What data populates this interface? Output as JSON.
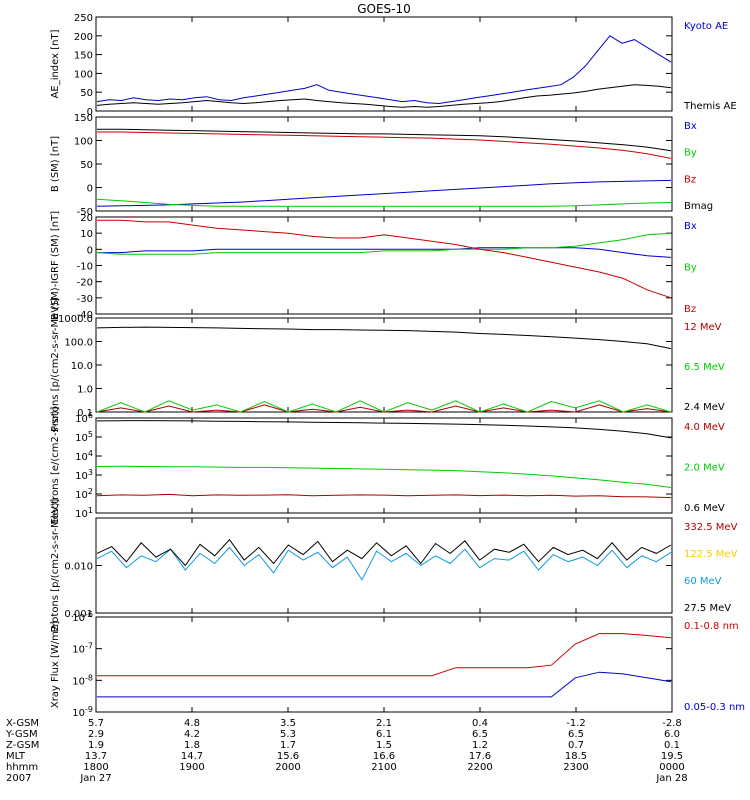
{
  "title": "GOES-10",
  "chart_data": [
    {
      "type": "line",
      "ylabel": "AE_index [nT]",
      "ylim": [
        0,
        250
      ],
      "yticks": [
        "0",
        "50",
        "100",
        "150",
        "200",
        "250"
      ],
      "series": [
        {
          "name": "Kyoto AE",
          "color": "#0000cc",
          "values": [
            25,
            30,
            28,
            35,
            30,
            28,
            32,
            30,
            35,
            38,
            30,
            28,
            35,
            40,
            45,
            50,
            55,
            60,
            70,
            55,
            50,
            45,
            40,
            35,
            30,
            25,
            28,
            22,
            20,
            25,
            30,
            35,
            40,
            45,
            50,
            55,
            60,
            65,
            70,
            90,
            120,
            160,
            200,
            180,
            190,
            170,
            150,
            130
          ]
        },
        {
          "name": "Themis AE",
          "color": "#000000",
          "values": [
            15,
            18,
            20,
            22,
            20,
            18,
            20,
            22,
            25,
            28,
            25,
            22,
            20,
            22,
            25,
            28,
            30,
            32,
            28,
            25,
            22,
            20,
            18,
            15,
            12,
            10,
            12,
            10,
            12,
            15,
            18,
            20,
            22,
            25,
            30,
            35,
            40,
            42,
            45,
            48,
            52,
            58,
            62,
            66,
            70,
            68,
            66,
            62
          ]
        }
      ]
    },
    {
      "type": "line",
      "ylabel": "B (SM) [nT]",
      "ylim": [
        -50,
        150
      ],
      "yticks": [
        "-50",
        "0",
        "50",
        "100",
        "150"
      ],
      "series": [
        {
          "name": "Bx",
          "color": "#0000cc",
          "values": [
            -40,
            -39,
            -38,
            -37,
            -35,
            -33,
            -31,
            -28,
            -25,
            -22,
            -19,
            -16,
            -13,
            -10,
            -7,
            -4,
            -1,
            2,
            5,
            8,
            10,
            12,
            13,
            14,
            15
          ]
        },
        {
          "name": "By",
          "color": "#00cc00",
          "values": [
            -25,
            -28,
            -32,
            -36,
            -38,
            -40,
            -40,
            -40,
            -40,
            -40,
            -40,
            -40,
            -40,
            -40,
            -40,
            -40,
            -40,
            -40,
            -40,
            -40,
            -39,
            -37,
            -35,
            -33,
            -32
          ]
        },
        {
          "name": "Bz",
          "color": "#cc0000",
          "values": [
            118,
            118,
            117,
            116,
            115,
            114,
            113,
            112,
            111,
            110,
            109,
            108,
            107,
            106,
            105,
            103,
            101,
            98,
            95,
            92,
            88,
            84,
            79,
            72,
            62
          ]
        },
        {
          "name": "Bmag",
          "color": "#000000",
          "values": [
            124,
            124,
            123,
            122,
            121,
            120,
            119,
            118,
            117,
            116,
            115,
            114,
            114,
            113,
            112,
            111,
            110,
            108,
            105,
            102,
            99,
            95,
            91,
            86,
            78
          ]
        }
      ]
    },
    {
      "type": "line",
      "ylabel": "B (SM)-IGRF (SM) [nT]",
      "ylim": [
        -40,
        20
      ],
      "yticks": [
        "-40",
        "-30",
        "-20",
        "-10",
        "0",
        "10",
        "20"
      ],
      "series": [
        {
          "name": "Bx",
          "color": "#0000cc",
          "values": [
            -2,
            -2,
            -1,
            -1,
            -1,
            0,
            0,
            0,
            0,
            0,
            0,
            0,
            0,
            0,
            0,
            0,
            1,
            1,
            1,
            1,
            1,
            0,
            -2,
            -4,
            -5
          ]
        },
        {
          "name": "By",
          "color": "#00cc00",
          "values": [
            -2,
            -3,
            -3,
            -3,
            -3,
            -2,
            -2,
            -2,
            -2,
            -2,
            -2,
            -2,
            -1,
            -1,
            -1,
            0,
            0,
            0,
            1,
            1,
            2,
            4,
            6,
            9,
            10
          ]
        },
        {
          "name": "Bz",
          "color": "#cc0000",
          "values": [
            18,
            18,
            17,
            17,
            15,
            13,
            12,
            11,
            10,
            8,
            7,
            7,
            9,
            7,
            5,
            3,
            0,
            -2,
            -5,
            -8,
            -11,
            -14,
            -18,
            -25,
            -30
          ]
        }
      ]
    },
    {
      "type": "line",
      "ylabel": "Protons [p/(cm2-s-sr-MeV)]",
      "yscale": "log",
      "ylim": [
        0.1,
        1000
      ],
      "yticks": [
        "0.1",
        "1.0",
        "10.0",
        "100.0",
        "1000.0"
      ],
      "series": [
        {
          "name": "12 MeV",
          "color": "#aa0000",
          "values": [
            0.1,
            0.15,
            0.1,
            0.18,
            0.1,
            0.12,
            0.1,
            0.2,
            0.1,
            0.13,
            0.1,
            0.16,
            0.1,
            0.12,
            0.1,
            0.18,
            0.1,
            0.15,
            0.1,
            0.12,
            0.1,
            0.2,
            0.1,
            0.14,
            0.1
          ]
        },
        {
          "name": "6.5 MeV",
          "color": "#00cc00",
          "values": [
            0.1,
            0.25,
            0.1,
            0.3,
            0.12,
            0.2,
            0.1,
            0.28,
            0.1,
            0.22,
            0.1,
            0.3,
            0.1,
            0.25,
            0.12,
            0.3,
            0.1,
            0.22,
            0.1,
            0.28,
            0.15,
            0.3,
            0.1,
            0.2,
            0.1
          ]
        },
        {
          "name": "2.4 MeV",
          "color": "#000000",
          "values": [
            380,
            400,
            410,
            400,
            390,
            380,
            360,
            350,
            340,
            320,
            320,
            310,
            300,
            290,
            270,
            250,
            220,
            200,
            180,
            160,
            140,
            120,
            100,
            80,
            50
          ]
        }
      ]
    },
    {
      "type": "line",
      "ylabel": "Electrons [e/(cm2-s-sr)]",
      "yscale": "log",
      "ylim": [
        10,
        1000000
      ],
      "yticks": [
        "10^1",
        "10^2",
        "10^3",
        "10^4",
        "10^5",
        "10^6"
      ],
      "series": [
        {
          "name": "4.0 MeV",
          "color": "#aa0000",
          "values": [
            80,
            90,
            85,
            95,
            80,
            90,
            85,
            88,
            92,
            80,
            85,
            90,
            88,
            80,
            85,
            90,
            82,
            88,
            80,
            85,
            78,
            80,
            72,
            70,
            65
          ]
        },
        {
          "name": "2.0 MeV",
          "color": "#00cc00",
          "values": [
            2800,
            2900,
            2800,
            2700,
            2700,
            2600,
            2500,
            2500,
            2400,
            2300,
            2200,
            2100,
            2000,
            1900,
            1800,
            1700,
            1500,
            1300,
            1100,
            900,
            700,
            550,
            420,
            320,
            220
          ]
        },
        {
          "name": "0.6 MeV",
          "color": "#000000",
          "values": [
            700000,
            720000,
            730000,
            710000,
            700000,
            680000,
            660000,
            640000,
            620000,
            600000,
            580000,
            560000,
            540000,
            520000,
            500000,
            480000,
            450000,
            420000,
            380000,
            340000,
            300000,
            250000,
            200000,
            150000,
            90000
          ]
        }
      ]
    },
    {
      "type": "line",
      "ylabel": "Protons [p/(cm2-s-sr-MeV)]",
      "yscale": "log",
      "ylim": [
        0.001,
        0.1
      ],
      "yticks": [
        "0.001",
        "0.010"
      ],
      "series": [
        {
          "name": "332.5 MeV",
          "color": "#aa0000",
          "values": []
        },
        {
          "name": "122.5 MeV",
          "color": "#ffcc00",
          "values": []
        },
        {
          "name": "60 MeV",
          "color": "#1199dd",
          "values": [
            0.014,
            0.02,
            0.009,
            0.016,
            0.012,
            0.022,
            0.008,
            0.018,
            0.011,
            0.024,
            0.01,
            0.017,
            0.007,
            0.021,
            0.013,
            0.019,
            0.009,
            0.015,
            0.005,
            0.02,
            0.012,
            0.018,
            0.01,
            0.016,
            0.011,
            0.022,
            0.009,
            0.014,
            0.013,
            0.02,
            0.008,
            0.017,
            0.012,
            0.015,
            0.01,
            0.021,
            0.009,
            0.016,
            0.012,
            0.019
          ]
        },
        {
          "name": "27.5 MeV",
          "color": "#000000",
          "values": [
            0.018,
            0.025,
            0.012,
            0.03,
            0.015,
            0.022,
            0.01,
            0.028,
            0.016,
            0.035,
            0.013,
            0.024,
            0.011,
            0.027,
            0.017,
            0.032,
            0.012,
            0.021,
            0.014,
            0.03,
            0.016,
            0.026,
            0.011,
            0.029,
            0.018,
            0.033,
            0.013,
            0.022,
            0.019,
            0.028,
            0.012,
            0.024,
            0.017,
            0.021,
            0.014,
            0.03,
            0.013,
            0.024,
            0.018,
            0.027
          ]
        }
      ]
    },
    {
      "type": "line",
      "ylabel": "Xray Flux [W/m2]",
      "yscale": "log",
      "ylim": [
        1e-09,
        1e-06
      ],
      "yticks": [
        "10^-9",
        "10^-8",
        "10^-7",
        "10^-6"
      ],
      "series": [
        {
          "name": "0.1-0.8 nm",
          "color": "#cc0000",
          "values": [
            1.4e-08,
            1.4e-08,
            1.4e-08,
            1.4e-08,
            1.4e-08,
            1.4e-08,
            1.4e-08,
            1.4e-08,
            1.4e-08,
            1.4e-08,
            1.4e-08,
            1.4e-08,
            1.4e-08,
            1.4e-08,
            1.4e-08,
            2.5e-08,
            2.5e-08,
            2.5e-08,
            2.5e-08,
            3e-08,
            1.4e-07,
            3e-07,
            3e-07,
            2.6e-07,
            2.2e-07
          ]
        },
        {
          "name": "0.05-0.3 nm",
          "color": "#0000cc",
          "values": [
            3e-09,
            3e-09,
            3e-09,
            3e-09,
            3e-09,
            3e-09,
            3e-09,
            3e-09,
            3e-09,
            3e-09,
            3e-09,
            3e-09,
            3e-09,
            3e-09,
            3e-09,
            3e-09,
            3e-09,
            3e-09,
            3e-09,
            3e-09,
            1.2e-08,
            1.8e-08,
            1.6e-08,
            1.2e-08,
            9e-09
          ]
        }
      ]
    }
  ],
  "xaxis": {
    "rows": [
      {
        "label": "X-GSM",
        "values": [
          "5.7",
          "4.8",
          "3.5",
          "2.1",
          "0.4",
          "-1.2",
          "-2.8"
        ]
      },
      {
        "label": "Y-GSM",
        "values": [
          "2.9",
          "4.2",
          "5.3",
          "6.1",
          "6.5",
          "6.5",
          "6.0"
        ]
      },
      {
        "label": "Z-GSM",
        "values": [
          "1.9",
          "1.8",
          "1.7",
          "1.5",
          "1.2",
          "0.7",
          "0.1"
        ]
      },
      {
        "label": "MLT",
        "values": [
          "13.7",
          "14.7",
          "15.6",
          "16.6",
          "17.6",
          "18.5",
          "19.5"
        ]
      },
      {
        "label": "hhmm",
        "values": [
          "1800",
          "1900",
          "2000",
          "2100",
          "2200",
          "2300",
          "0000"
        ]
      },
      {
        "label": "2007",
        "values": [
          "Jan 27",
          "",
          "",
          "",
          "",
          "",
          "Jan 28"
        ]
      }
    ]
  }
}
